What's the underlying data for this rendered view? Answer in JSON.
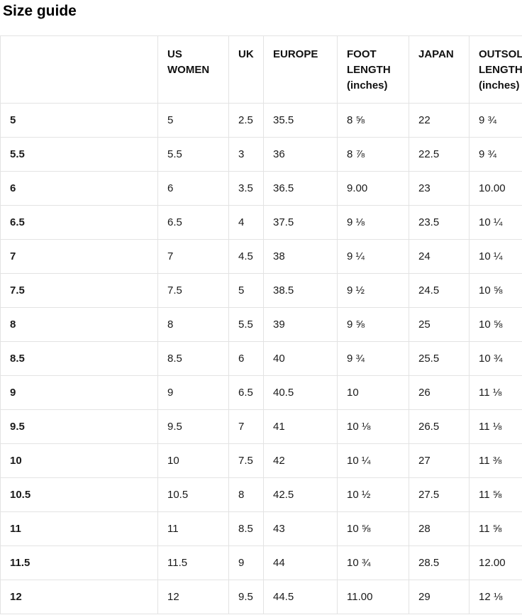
{
  "title": "Size guide",
  "colors": {
    "border": "#e3e3e3",
    "text": "#1a1a1a",
    "background": "#ffffff"
  },
  "table": {
    "columns": [
      "",
      "US WOMEN",
      "UK",
      "EUROPE",
      "FOOT LENGTH (inches)",
      "JAPAN",
      "OUTSOLE LENGTH (inches)"
    ],
    "column_keys": [
      "size",
      "us-women",
      "uk",
      "europe",
      "foot-length-inches",
      "japan",
      "outsole-length-inches"
    ],
    "rows": [
      [
        "5",
        "5",
        "2.5",
        "35.5",
        "8 ⅝",
        "22",
        "9 ¾"
      ],
      [
        "5.5",
        "5.5",
        "3",
        "36",
        "8 ⅞",
        "22.5",
        "9 ¾"
      ],
      [
        "6",
        "6",
        "3.5",
        "36.5",
        "9.00",
        "23",
        "10.00"
      ],
      [
        "6.5",
        "6.5",
        "4",
        "37.5",
        "9 ⅛",
        "23.5",
        "10 ¼"
      ],
      [
        "7",
        "7",
        "4.5",
        "38",
        "9 ¼",
        "24",
        "10 ¼"
      ],
      [
        "7.5",
        "7.5",
        "5",
        "38.5",
        "9 ½",
        "24.5",
        "10 ⅝"
      ],
      [
        "8",
        "8",
        "5.5",
        "39",
        "9 ⅝",
        "25",
        "10 ⅝"
      ],
      [
        "8.5",
        "8.5",
        "6",
        "40",
        "9 ¾",
        "25.5",
        "10 ¾"
      ],
      [
        "9",
        "9",
        "6.5",
        "40.5",
        "10",
        "26",
        "11 ⅛"
      ],
      [
        "9.5",
        "9.5",
        "7",
        "41",
        "10 ⅛",
        "26.5",
        "11 ⅛"
      ],
      [
        "10",
        "10",
        "7.5",
        "42",
        "10 ¼",
        "27",
        "11 ⅜"
      ],
      [
        "10.5",
        "10.5",
        "8",
        "42.5",
        "10 ½",
        "27.5",
        "11 ⅝"
      ],
      [
        "11",
        "11",
        "8.5",
        "43",
        "10 ⅝",
        "28",
        "11 ⅝"
      ],
      [
        "11.5",
        "11.5",
        "9",
        "44",
        "10 ¾",
        "28.5",
        "12.00"
      ],
      [
        "12",
        "12",
        "9.5",
        "44.5",
        "11.00",
        "29",
        "12 ⅛"
      ]
    ]
  }
}
